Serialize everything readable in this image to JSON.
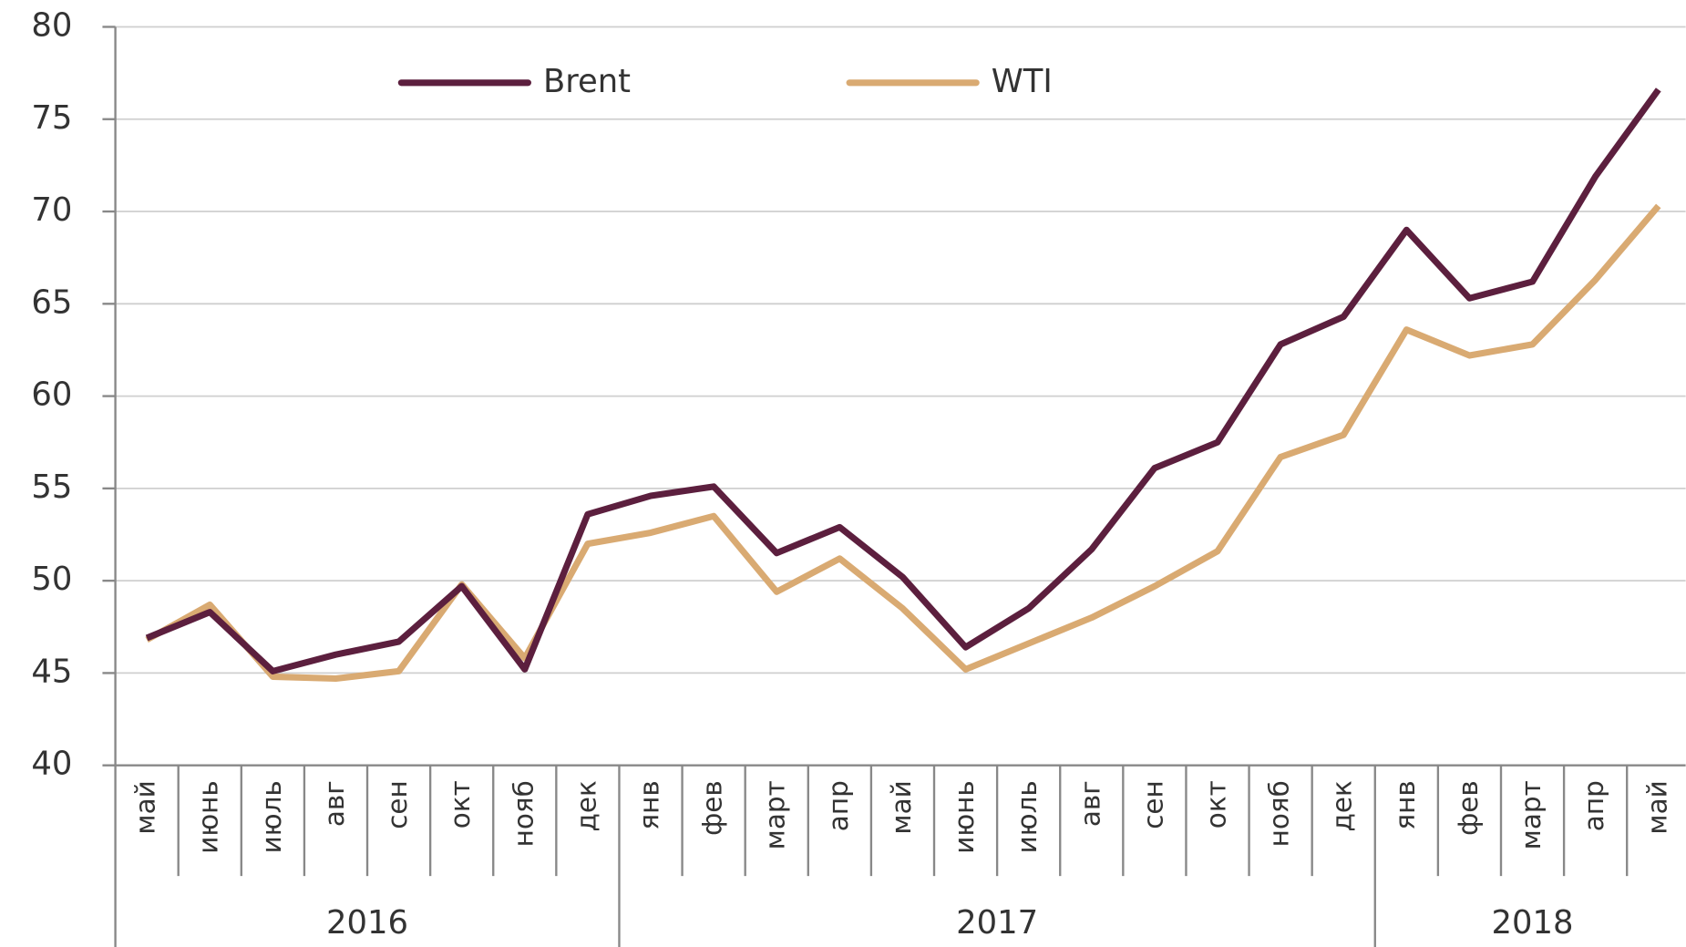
{
  "chart_data": {
    "type": "line",
    "groups": [
      {
        "label": "2016",
        "categories": [
          "май",
          "июнь",
          "июль",
          "авг",
          "сен",
          "окт",
          "нояб",
          "дек"
        ]
      },
      {
        "label": "2017",
        "categories": [
          "янв",
          "фев",
          "март",
          "апр",
          "май",
          "июнь",
          "июль",
          "авг",
          "сен",
          "окт",
          "нояб",
          "дек"
        ]
      },
      {
        "label": "2018",
        "categories": [
          "янв",
          "фев",
          "март",
          "апр",
          "май"
        ]
      }
    ],
    "series": [
      {
        "name": "Brent",
        "color": "#5c1f3e",
        "values": [
          46.9,
          48.3,
          45.1,
          46.0,
          46.7,
          49.7,
          45.2,
          53.6,
          54.6,
          55.1,
          51.5,
          52.9,
          50.2,
          46.4,
          48.5,
          51.7,
          56.1,
          57.5,
          62.8,
          64.3,
          69.0,
          65.3,
          66.2,
          71.9,
          76.6
        ]
      },
      {
        "name": "WTI",
        "color": "#d9aa72",
        "values": [
          46.8,
          48.7,
          44.8,
          44.7,
          45.1,
          49.8,
          45.8,
          52.0,
          52.6,
          53.5,
          49.4,
          51.2,
          48.5,
          45.2,
          46.6,
          48.0,
          49.7,
          51.6,
          56.7,
          57.9,
          63.6,
          62.2,
          62.8,
          66.3,
          70.3
        ]
      }
    ],
    "ylim": [
      40,
      80
    ],
    "yticks": [
      40,
      45,
      50,
      55,
      60,
      65,
      70,
      75,
      80
    ],
    "grid": true,
    "legend": "top-left"
  }
}
